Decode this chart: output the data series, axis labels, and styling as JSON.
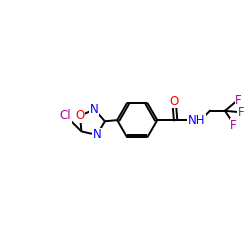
{
  "background_color": "#ffffff",
  "bond_color": "#000000",
  "atom_colors": {
    "O": "#ff0000",
    "N": "#0000ff",
    "Cl": "#aa00aa",
    "F": "#aa00aa"
  },
  "font_size": 8.5,
  "figsize": [
    2.5,
    2.5
  ],
  "dpi": 100,
  "lw": 1.4
}
